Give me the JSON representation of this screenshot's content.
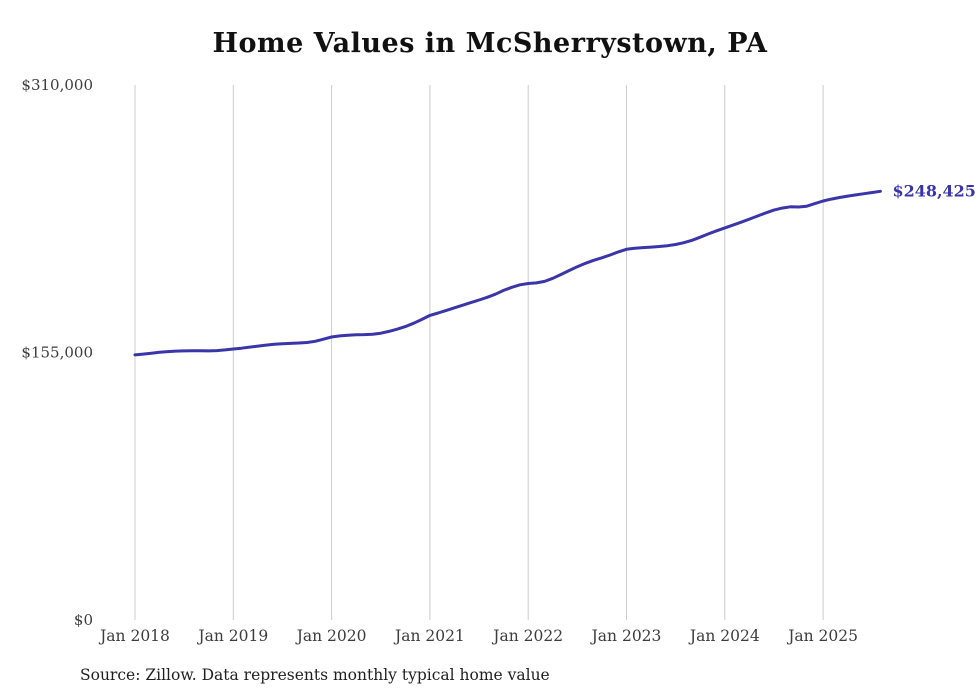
{
  "chart_data": {
    "type": "line",
    "title": "Home Values in McSherrystown, PA",
    "source": "Source: Zillow. Data represents monthly typical home value",
    "series_name": "Monthly typical home value",
    "line_color": "#3a35a8",
    "grid_color": "#cccccc",
    "end_label": "$248,425",
    "end_value": 248425,
    "ylim": [
      0,
      310000
    ],
    "grid": "vertical-only",
    "legend": "none",
    "y_ticks": [
      {
        "label": "$0",
        "value": 0
      },
      {
        "label": "$155,000",
        "value": 155000
      },
      {
        "label": "$310,000",
        "value": 310000
      }
    ],
    "x_ticks": [
      {
        "label": "Jan 2018",
        "month_index": 0
      },
      {
        "label": "Jan 2019",
        "month_index": 12
      },
      {
        "label": "Jan 2020",
        "month_index": 24
      },
      {
        "label": "Jan 2021",
        "month_index": 36
      },
      {
        "label": "Jan 2022",
        "month_index": 48
      },
      {
        "label": "Jan 2023",
        "month_index": 60
      },
      {
        "label": "Jan 2024",
        "month_index": 72
      },
      {
        "label": "Jan 2025",
        "month_index": 84
      }
    ],
    "x": [
      "2018-01",
      "2018-02",
      "2018-03",
      "2018-04",
      "2018-05",
      "2018-06",
      "2018-07",
      "2018-08",
      "2018-09",
      "2018-10",
      "2018-11",
      "2018-12",
      "2019-01",
      "2019-02",
      "2019-03",
      "2019-04",
      "2019-05",
      "2019-06",
      "2019-07",
      "2019-08",
      "2019-09",
      "2019-10",
      "2019-11",
      "2019-12",
      "2020-01",
      "2020-02",
      "2020-03",
      "2020-04",
      "2020-05",
      "2020-06",
      "2020-07",
      "2020-08",
      "2020-09",
      "2020-10",
      "2020-11",
      "2020-12",
      "2021-01",
      "2021-02",
      "2021-03",
      "2021-04",
      "2021-05",
      "2021-06",
      "2021-07",
      "2021-08",
      "2021-09",
      "2021-10",
      "2021-11",
      "2021-12",
      "2022-01",
      "2022-02",
      "2022-03",
      "2022-04",
      "2022-05",
      "2022-06",
      "2022-07",
      "2022-08",
      "2022-09",
      "2022-10",
      "2022-11",
      "2022-12",
      "2023-01",
      "2023-02",
      "2023-03",
      "2023-04",
      "2023-05",
      "2023-06",
      "2023-07",
      "2023-08",
      "2023-09",
      "2023-10",
      "2023-11",
      "2023-12",
      "2024-01",
      "2024-02",
      "2024-03",
      "2024-04",
      "2024-05",
      "2024-06",
      "2024-07",
      "2024-08",
      "2024-09",
      "2024-10",
      "2024-11",
      "2024-12",
      "2025-01",
      "2025-02",
      "2025-03",
      "2025-04",
      "2025-05",
      "2025-06",
      "2025-07",
      "2025-08"
    ],
    "values": [
      153600,
      154100,
      154600,
      155100,
      155500,
      155800,
      155900,
      156000,
      156000,
      155900,
      156100,
      156500,
      157000,
      157500,
      158100,
      158700,
      159300,
      159800,
      160100,
      160300,
      160500,
      160800,
      161500,
      162700,
      164000,
      164600,
      165000,
      165300,
      165400,
      165600,
      166200,
      167200,
      168500,
      170000,
      171900,
      174100,
      176500,
      177900,
      179400,
      180900,
      182400,
      183900,
      185400,
      187000,
      188800,
      191000,
      192800,
      194200,
      195000,
      195300,
      196200,
      198000,
      200200,
      202500,
      204700,
      206700,
      208400,
      209900,
      211500,
      213300,
      214800,
      215400,
      215800,
      216100,
      216400,
      216900,
      217600,
      218600,
      220000,
      221800,
      223700,
      225500,
      227200,
      228800,
      230500,
      232300,
      234100,
      235900,
      237500,
      238700,
      239400,
      239300,
      239800,
      241300,
      242800,
      243900,
      244800,
      245600,
      246300,
      247000,
      247700,
      248425
    ]
  }
}
